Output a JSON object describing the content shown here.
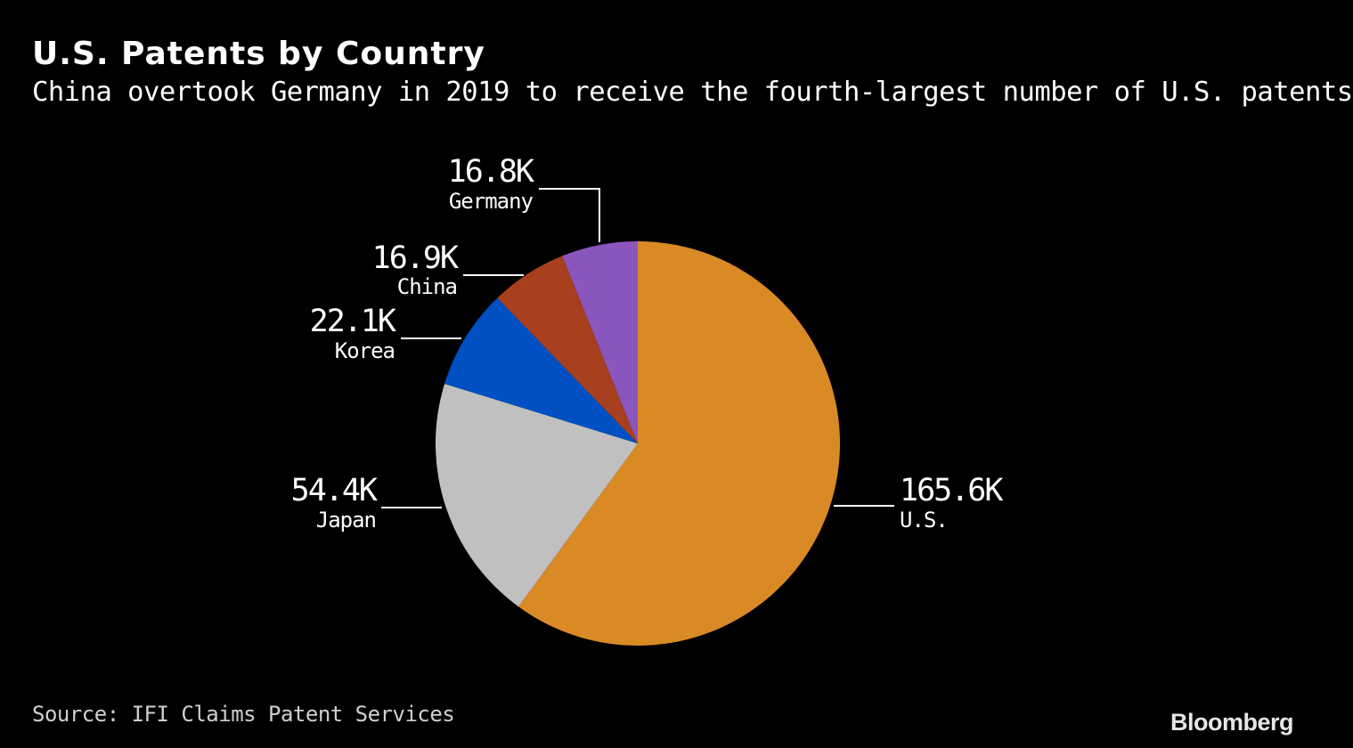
{
  "chart_data": {
    "type": "pie",
    "title": "U.S. Patents by Country",
    "subtitle": "China overtook Germany in 2019 to receive the fourth-largest number of U.S. patents",
    "slices": [
      {
        "name": "U.S.",
        "value": 165.6,
        "label": "165.6K",
        "color": "#d98a25",
        "side": "right"
      },
      {
        "name": "Japan",
        "value": 54.4,
        "label": "54.4K",
        "color": "#c0c0c0",
        "side": "left"
      },
      {
        "name": "Korea",
        "value": 22.1,
        "label": "22.1K",
        "color": "#0050c4",
        "side": "left"
      },
      {
        "name": "China",
        "value": 16.9,
        "label": "16.9K",
        "color": "#a83f1e",
        "side": "left"
      },
      {
        "name": "Germany",
        "value": 16.8,
        "label": "16.8K",
        "color": "#8b55be",
        "side": "left"
      }
    ],
    "start_angle": "12 o'clock",
    "direction": "clockwise"
  },
  "source": "Source: IFI Claims Patent Services",
  "brand": "Bloomberg"
}
